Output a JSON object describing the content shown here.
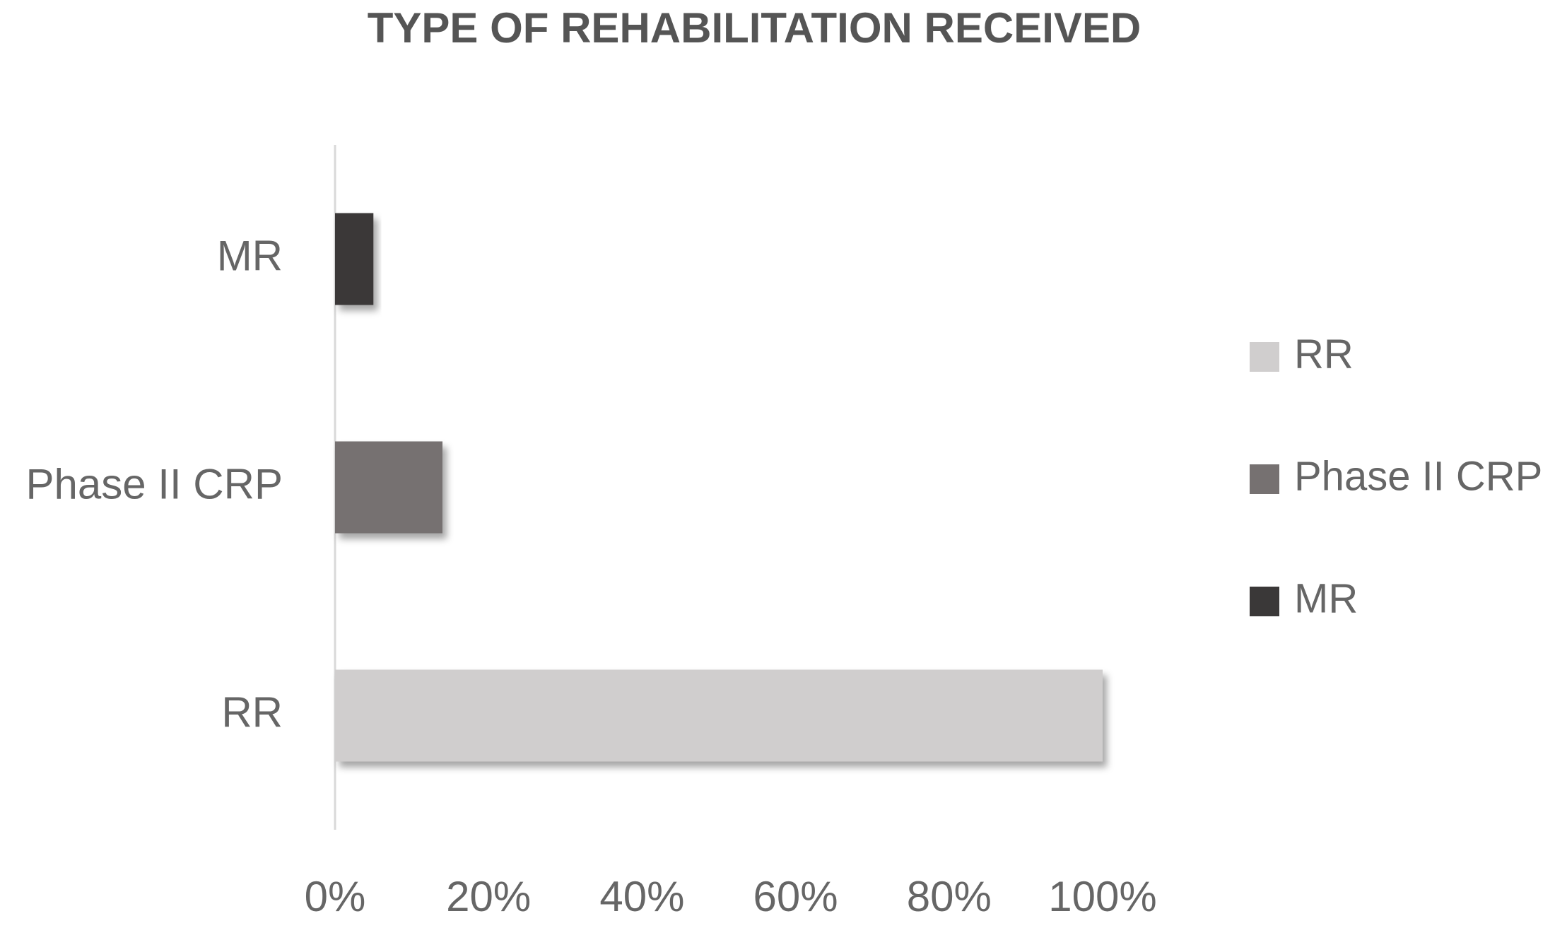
{
  "chart_data": {
    "type": "hbar",
    "title": "TYPE OF REHABILITATION RECEIVED",
    "categories": [
      "RR",
      "Phase II CRP",
      "MR"
    ],
    "values": [
      100,
      14,
      5
    ],
    "colors": [
      "#d0cece",
      "#767171",
      "#3a3838"
    ],
    "xlim": [
      0,
      100
    ],
    "xticks": [
      {
        "value": 0,
        "label": "0%"
      },
      {
        "value": 20,
        "label": "20%"
      },
      {
        "value": 40,
        "label": "40%"
      },
      {
        "value": 60,
        "label": "60%"
      },
      {
        "value": 80,
        "label": "80%"
      },
      {
        "value": 100,
        "label": "100%"
      }
    ],
    "legend": "right"
  }
}
